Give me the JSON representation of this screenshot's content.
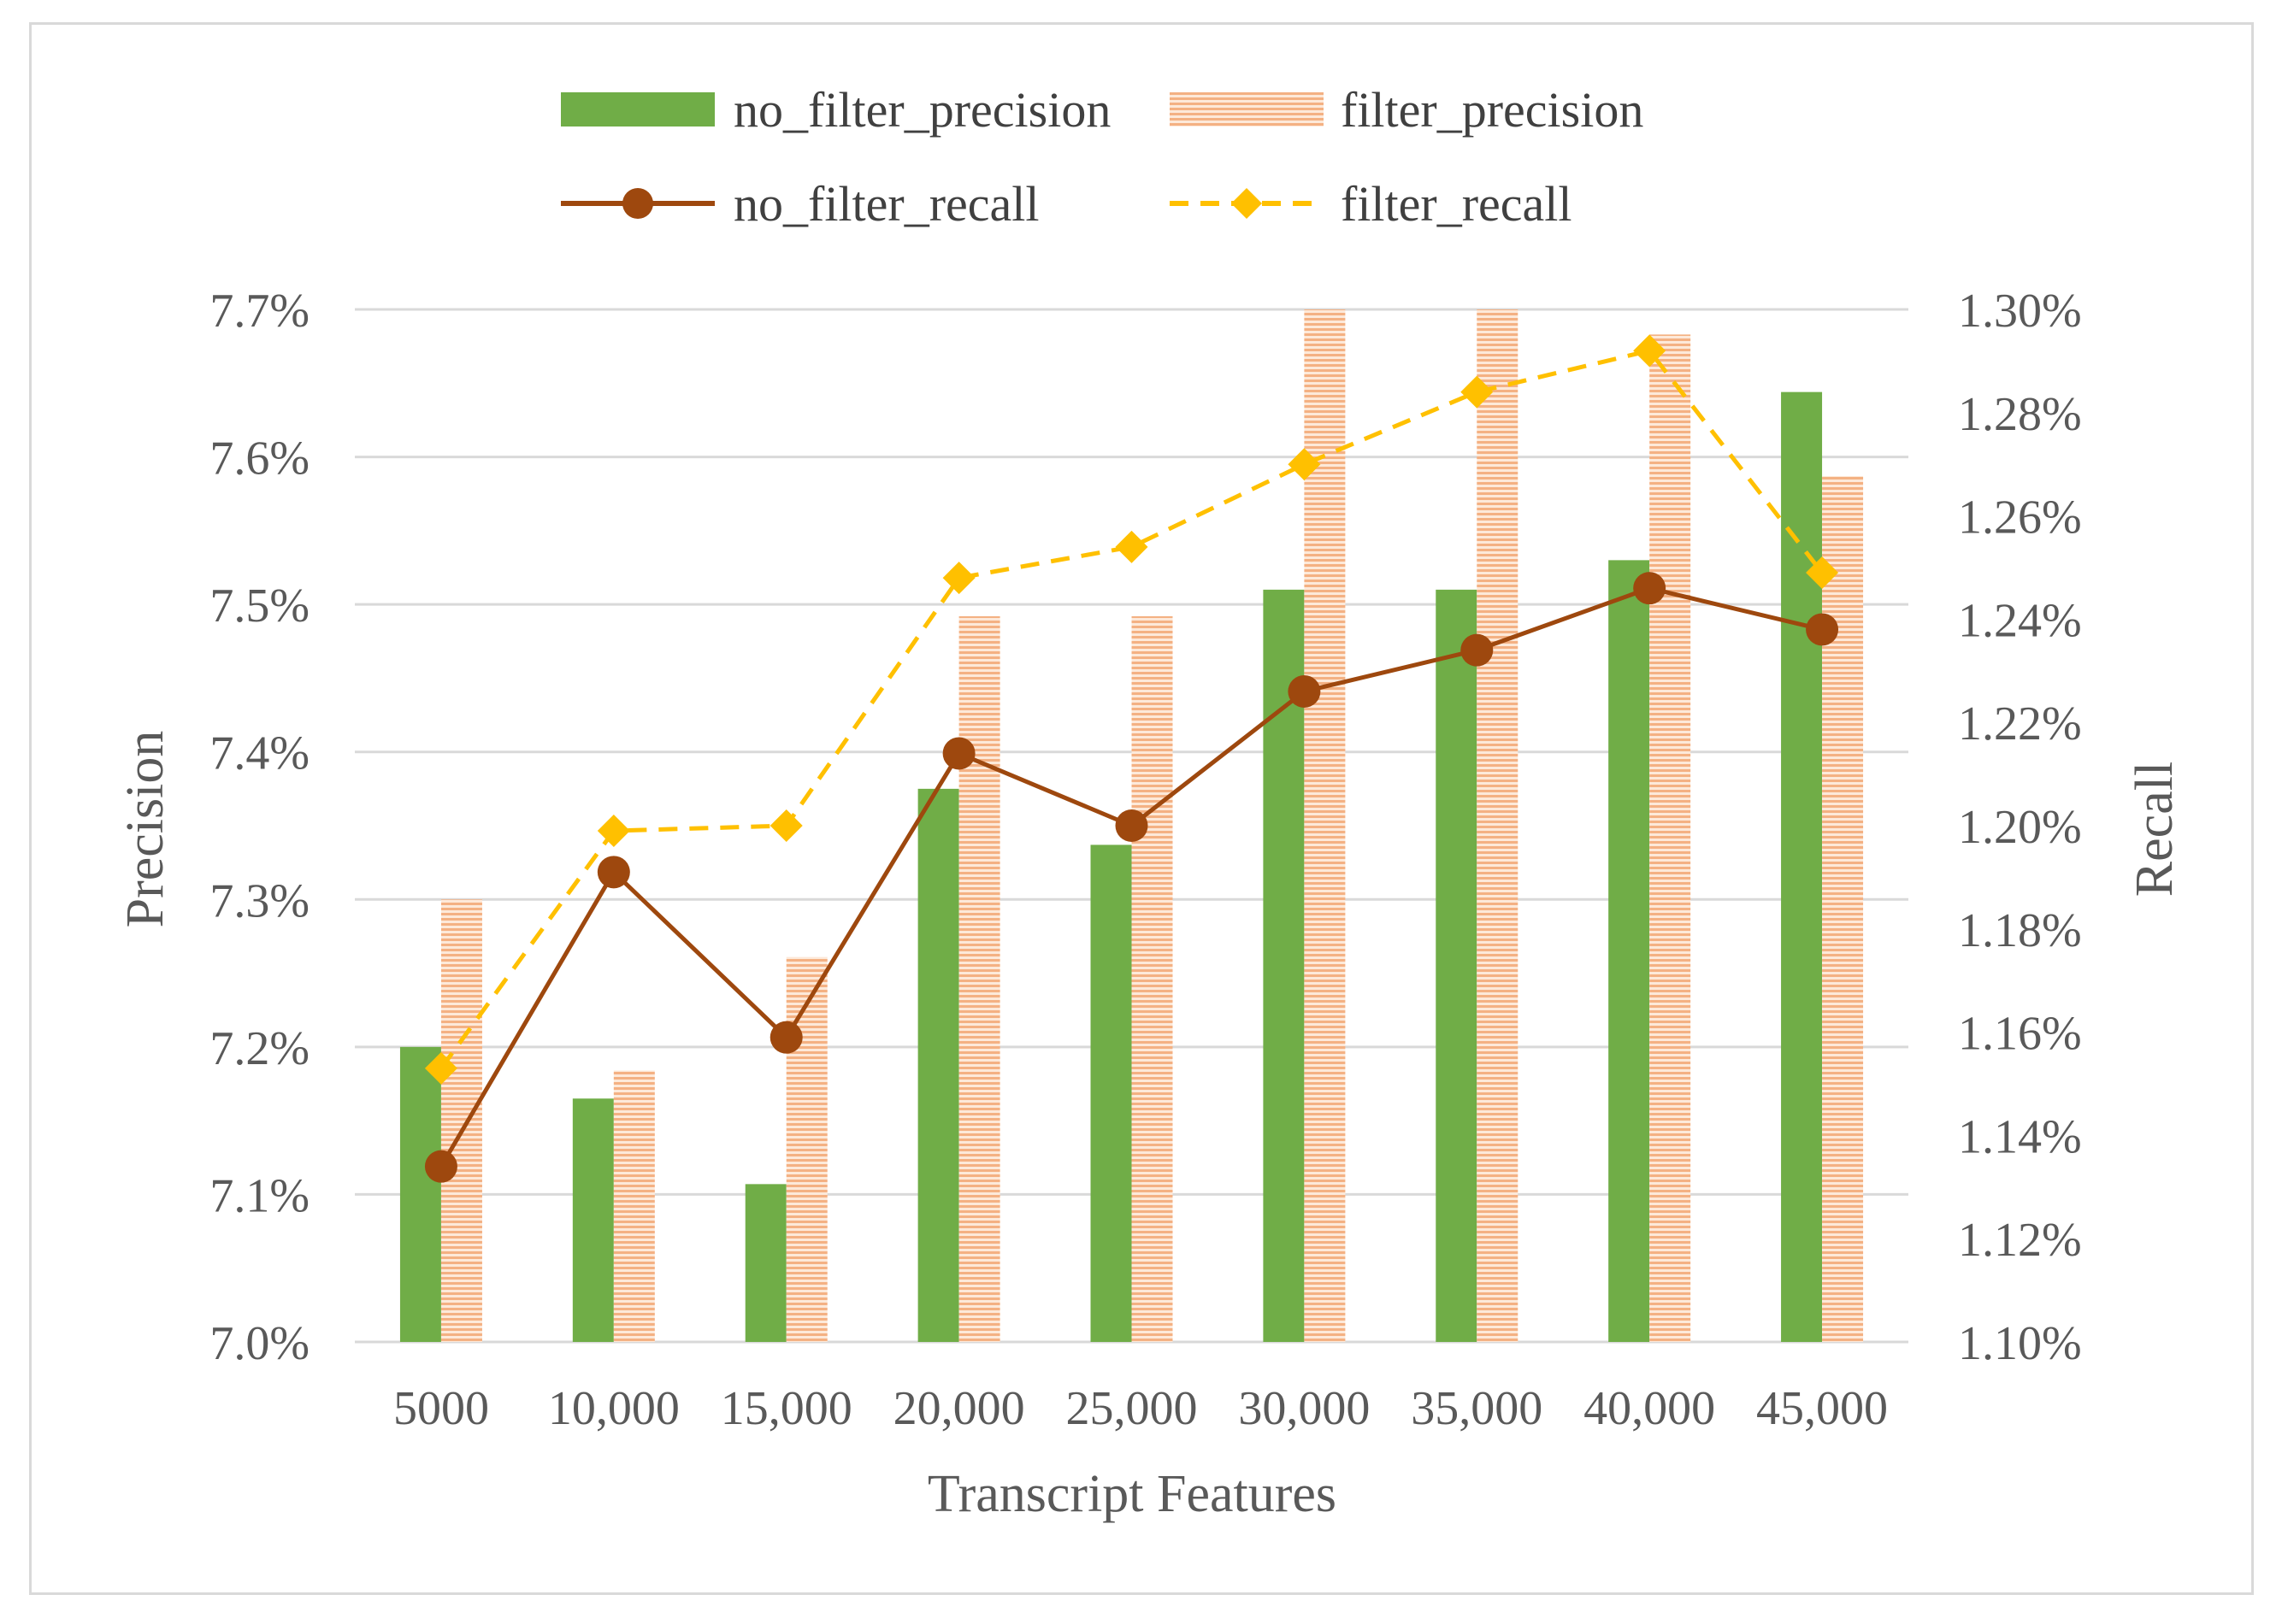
{
  "chart_data": {
    "type": "bar",
    "xlabel": "Transcript Features",
    "ylabel": "Precision",
    "y2label": "Recall",
    "categories": [
      "5000",
      "10,000",
      "15,000",
      "20,000",
      "25,000",
      "30,000",
      "35,000",
      "40,000",
      "45,000"
    ],
    "ylim": [
      7.0,
      7.7
    ],
    "y2lim": [
      1.1,
      1.3
    ],
    "yticks": [
      "7.0%",
      "7.1%",
      "7.2%",
      "7.3%",
      "7.4%",
      "7.5%",
      "7.6%",
      "7.7%"
    ],
    "y2ticks": [
      "1.10%",
      "1.12%",
      "1.14%",
      "1.16%",
      "1.18%",
      "1.20%",
      "1.22%",
      "1.24%",
      "1.26%",
      "1.28%",
      "1.30%"
    ],
    "grid": true,
    "legend_position": "top",
    "series": [
      {
        "name": "no_filter_precision",
        "kind": "bar",
        "axis": "left",
        "color": "#70ad47",
        "values": [
          7.2,
          7.165,
          7.107,
          7.375,
          7.337,
          7.51,
          7.51,
          7.53,
          7.644
        ]
      },
      {
        "name": "filter_precision",
        "kind": "bar",
        "axis": "left",
        "color": "#f4b183",
        "values": [
          7.3,
          7.184,
          7.261,
          7.492,
          7.492,
          7.7,
          7.7,
          7.683,
          7.587
        ]
      },
      {
        "name": "no_filter_recall",
        "kind": "line",
        "axis": "right",
        "color": "#9e480e",
        "values": [
          1.134,
          1.191,
          1.159,
          1.214,
          1.2,
          1.226,
          1.234,
          1.246,
          1.238
        ]
      },
      {
        "name": "filter_recall",
        "kind": "line",
        "axis": "right",
        "color": "#ffc000",
        "values": [
          1.153,
          1.199,
          1.2,
          1.248,
          1.254,
          1.27,
          1.284,
          1.292,
          1.249
        ]
      }
    ]
  }
}
